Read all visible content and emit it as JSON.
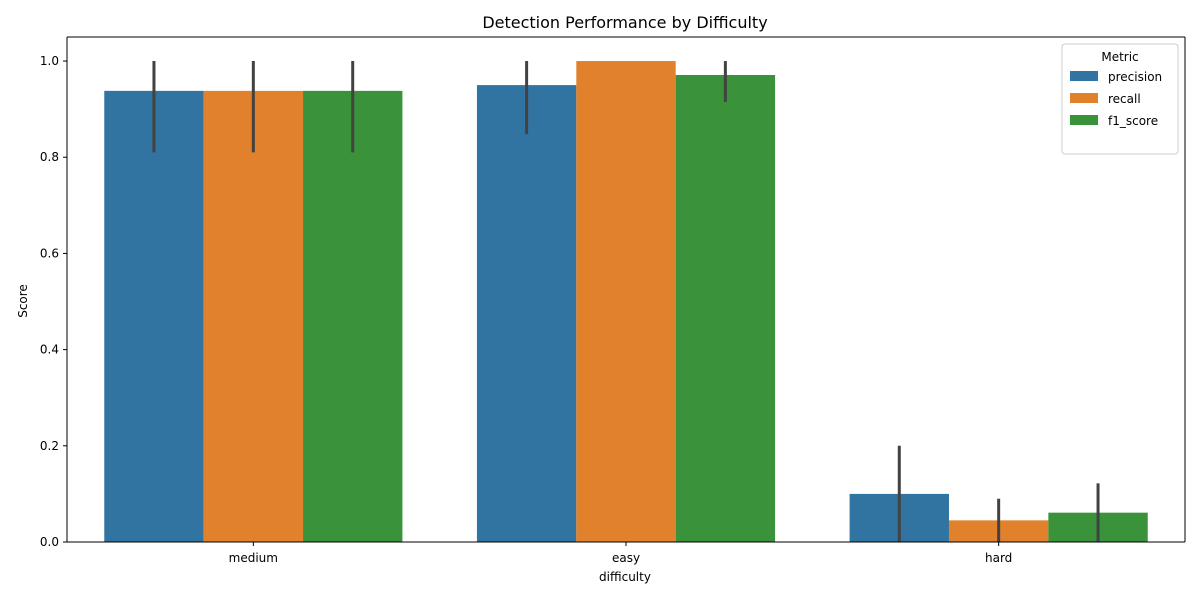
{
  "chart_data": {
    "type": "bar",
    "title": "Detection Performance by Difficulty",
    "xlabel": "difficulty",
    "ylabel": "Score",
    "ylim": [
      0,
      1.05
    ],
    "yticks": [
      "0.0",
      "0.2",
      "0.4",
      "0.6",
      "0.8",
      "1.0"
    ],
    "categories": [
      "medium",
      "easy",
      "hard"
    ],
    "series": [
      {
        "name": "precision",
        "color": "#3274a1",
        "values": [
          0.938,
          0.95,
          0.1
        ],
        "err_low": [
          0.81,
          0.848,
          0.0
        ],
        "err_high": [
          1.0,
          1.0,
          0.2
        ]
      },
      {
        "name": "recall",
        "color": "#e1812c",
        "values": [
          0.938,
          1.0,
          0.045
        ],
        "err_low": [
          0.81,
          1.0,
          0.0
        ],
        "err_high": [
          1.0,
          1.0,
          0.09
        ]
      },
      {
        "name": "f1_score",
        "color": "#3a923a",
        "values": [
          0.938,
          0.971,
          0.061
        ],
        "err_low": [
          0.81,
          0.915,
          0.0
        ],
        "err_high": [
          1.0,
          1.0,
          0.122
        ]
      }
    ],
    "legend": {
      "title": "Metric",
      "position": "top-right"
    },
    "grid": false
  }
}
